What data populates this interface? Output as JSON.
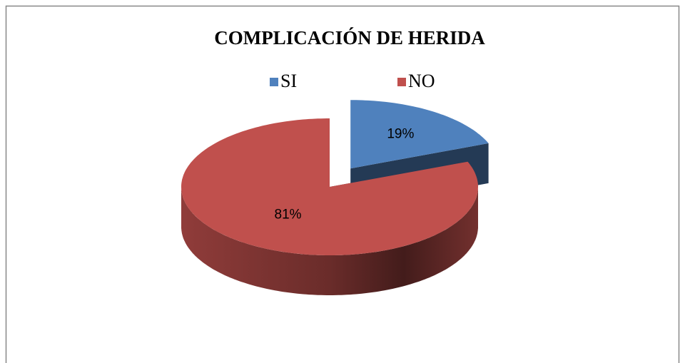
{
  "chart_data": {
    "type": "pie",
    "title": "COMPLICACIÓN DE HERIDA",
    "categories": [
      "SI",
      "NO"
    ],
    "values": [
      19,
      81
    ],
    "value_labels": [
      "19%",
      "81%"
    ],
    "colors": [
      "#4f81bd",
      "#c0504d"
    ],
    "legend": "top"
  }
}
